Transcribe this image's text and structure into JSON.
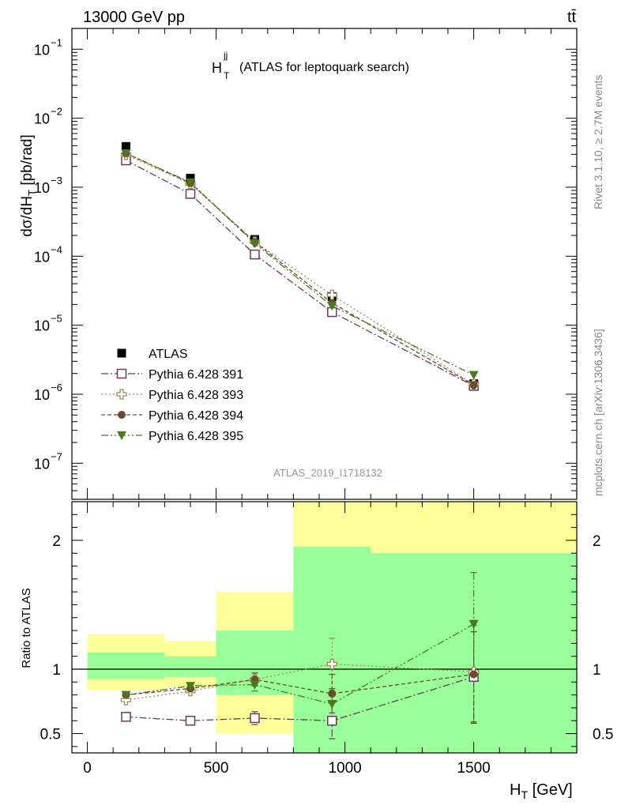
{
  "header": {
    "left": "13000 GeV pp",
    "right": "tt̄"
  },
  "side_labels": {
    "rivet": "Rivet 3.1.10, ≥ 2.7M events",
    "mcplots": "mcplots.cern.ch [arXiv:1306.3436]"
  },
  "chart_data": {
    "type": "line",
    "title_main": "H",
    "title_sup": "jj",
    "title_sub": "T",
    "title_rest": "(ATLAS for leptoquark search)",
    "analysis_id": "ATLAS_2019_I1718132",
    "xlabel": "H",
    "xlabel_sub": "T",
    "xlabel_unit": "[GeV]",
    "xlim": [
      -60,
      1900
    ],
    "x_ticks": [
      0,
      500,
      1000,
      1500
    ],
    "ylabel_main": "dσ/dH",
    "ylabel_sub": "T",
    "ylabel_unit": "[pb/rad]",
    "ylog": true,
    "ylim": [
      3e-08,
      0.2
    ],
    "y_tick_labels": [
      {
        "exp": -1,
        "label": "10",
        "sup": "−1"
      },
      {
        "exp": -2,
        "label": "10",
        "sup": "−2"
      },
      {
        "exp": -3,
        "label": "10",
        "sup": "−3"
      },
      {
        "exp": -4,
        "label": "10",
        "sup": "−4"
      },
      {
        "exp": -5,
        "label": "10",
        "sup": "−5"
      },
      {
        "exp": -6,
        "label": "10",
        "sup": "−6"
      },
      {
        "exp": -7,
        "label": "10",
        "sup": "−7"
      }
    ],
    "x": [
      150,
      400,
      650,
      950,
      1500
    ],
    "legend_position": "lower-left",
    "series": [
      {
        "name": "ATLAS",
        "marker": "square-filled",
        "color": "#000000",
        "dash": "none",
        "values": [
          0.0039,
          0.00135,
          0.000175,
          2.6e-05,
          1.42e-06
        ]
      },
      {
        "name": "Pythia 6.428 391",
        "marker": "square-open",
        "color": "#6b3a5c",
        "dash": "9,3,2,3",
        "values": [
          0.00245,
          0.0008,
          0.000106,
          1.55e-05,
          1.32e-06
        ],
        "ratio": [
          0.63,
          0.6,
          0.62,
          0.6,
          0.94
        ],
        "ratio_err": [
          0.015,
          0.015,
          0.05,
          0.14,
          0.35
        ]
      },
      {
        "name": "Pythia 6.428 393",
        "marker": "cross-open",
        "color": "#a08a55",
        "dash": "2,3",
        "values": [
          0.00296,
          0.00112,
          0.000162,
          2.75e-05,
          1.39e-06
        ],
        "ratio": [
          0.76,
          0.83,
          0.92,
          1.04,
          0.98
        ],
        "ratio_err": [
          0.015,
          0.02,
          0.05,
          0.2,
          0.4
        ]
      },
      {
        "name": "Pythia 6.428 394",
        "marker": "circle-filled",
        "color": "#6b4a2e",
        "dash": "5,3",
        "values": [
          0.0031,
          0.00115,
          0.000161,
          2.1e-05,
          1.36e-06
        ],
        "ratio": [
          0.8,
          0.85,
          0.92,
          0.81,
          0.96
        ],
        "ratio_err": [
          0.015,
          0.02,
          0.05,
          0.15,
          0.38
        ]
      },
      {
        "name": "Pythia 6.428 395",
        "marker": "triangle-down-filled",
        "color": "#4a7a1e",
        "dash": "9,3,2,3,2,3",
        "values": [
          0.0031,
          0.00118,
          0.000153,
          1.9e-05,
          1.9e-06
        ],
        "ratio": [
          0.8,
          0.87,
          0.88,
          0.73,
          1.35
        ],
        "ratio_err": [
          0.015,
          0.02,
          0.05,
          0.12,
          0.4
        ]
      }
    ],
    "ratio_panel": {
      "ylabel": "Ratio to ATLAS",
      "ylim": [
        0.35,
        2.3
      ],
      "y_ticks": [
        0.5,
        1,
        2
      ],
      "y_tick_labels": [
        "0.5",
        "1",
        "2"
      ],
      "reference_line": 1,
      "yellow_band": [
        {
          "x0": 0,
          "x1": 300,
          "lo": 0.84,
          "hi": 1.27
        },
        {
          "x0": 300,
          "x1": 500,
          "lo": 0.86,
          "hi": 1.22
        },
        {
          "x0": 500,
          "x1": 800,
          "lo": 0.5,
          "hi": 1.6
        },
        {
          "x0": 800,
          "x1": 1900,
          "lo": 0.35,
          "hi": 2.3
        }
      ],
      "green_band": [
        {
          "x0": 0,
          "x1": 300,
          "lo": 0.92,
          "hi": 1.13
        },
        {
          "x0": 300,
          "x1": 500,
          "lo": 0.94,
          "hi": 1.1
        },
        {
          "x0": 500,
          "x1": 800,
          "lo": 0.8,
          "hi": 1.3
        },
        {
          "x0": 800,
          "x1": 1100,
          "lo": 0.35,
          "hi": 1.95
        },
        {
          "x0": 1100,
          "x1": 1900,
          "lo": 0.35,
          "hi": 1.9
        }
      ]
    }
  }
}
